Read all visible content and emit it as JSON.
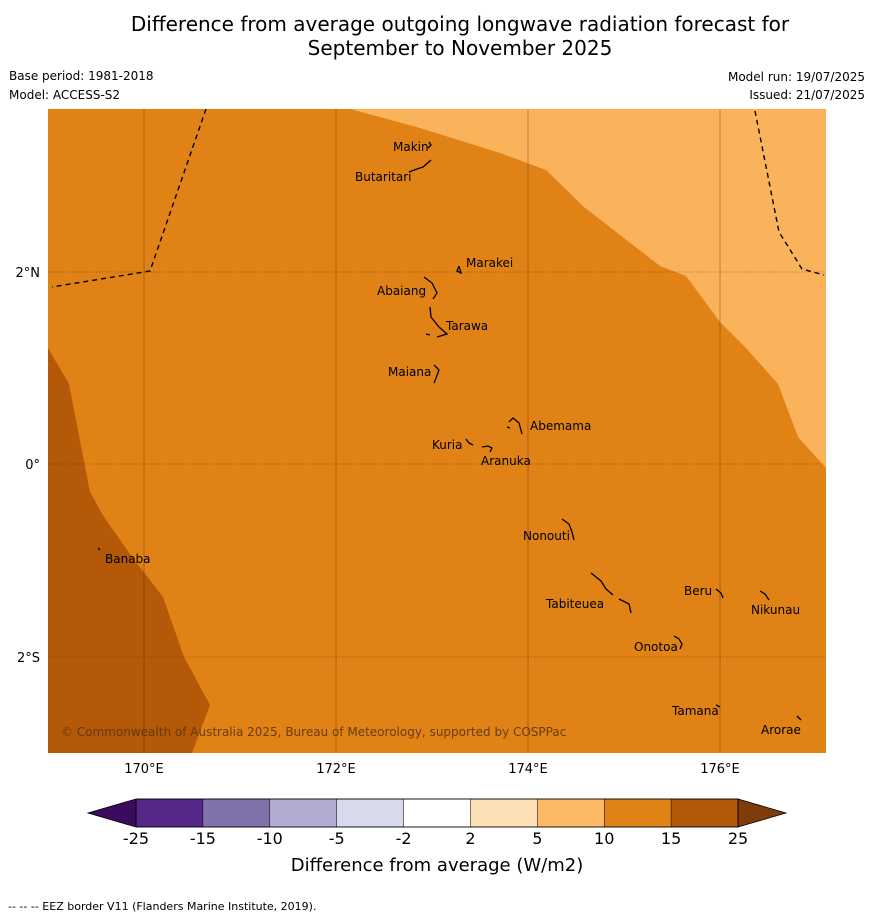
{
  "header": {
    "title_line1": "Difference from average outgoing longwave radiation forecast for",
    "title_line2": "September to November 2025",
    "base_period": "Base period: 1981-2018",
    "model": "Model: ACCESS-S2",
    "model_run": "Model run: 19/07/2025",
    "issued": "Issued: 21/07/2025"
  },
  "map": {
    "lat_labels": [
      "2°N",
      "0°",
      "2°S"
    ],
    "lon_labels": [
      "170°E",
      "172°E",
      "174°E",
      "176°E"
    ],
    "places": [
      "Makin",
      "Butaritari",
      "Marakei",
      "Abaiang",
      "Tarawa",
      "Maiana",
      "Abemama",
      "Kuria",
      "Aranuka",
      "Nonouti",
      "Banaba",
      "Tabiteuea",
      "Beru",
      "Nikunau",
      "Onotoa",
      "Tamana",
      "Arorae"
    ],
    "copyright": "© Commonwealth of Australia 2025, Bureau of Meteorology, supported by COSPPac",
    "region_colors": {
      "5_to_10": "#fbb35b",
      "10_to_15": "#e08215",
      "15_to_25": "#b45908"
    }
  },
  "colorbar": {
    "ticks": [
      "-25",
      "-15",
      "-10",
      "-5",
      "-2",
      "2",
      "5",
      "10",
      "15",
      "25"
    ],
    "colors": [
      "#3a0b5e",
      "#542788",
      "#8073ac",
      "#b2abd2",
      "#d8daeb",
      "#ffffff",
      "#fee0b6",
      "#fdb863",
      "#e08214",
      "#b35806",
      "#7f3b08"
    ],
    "title": "Difference from average (W/m2)"
  },
  "footnote": "--  --  -- EEZ border V11 (Flanders Marine Institute, 2019)."
}
